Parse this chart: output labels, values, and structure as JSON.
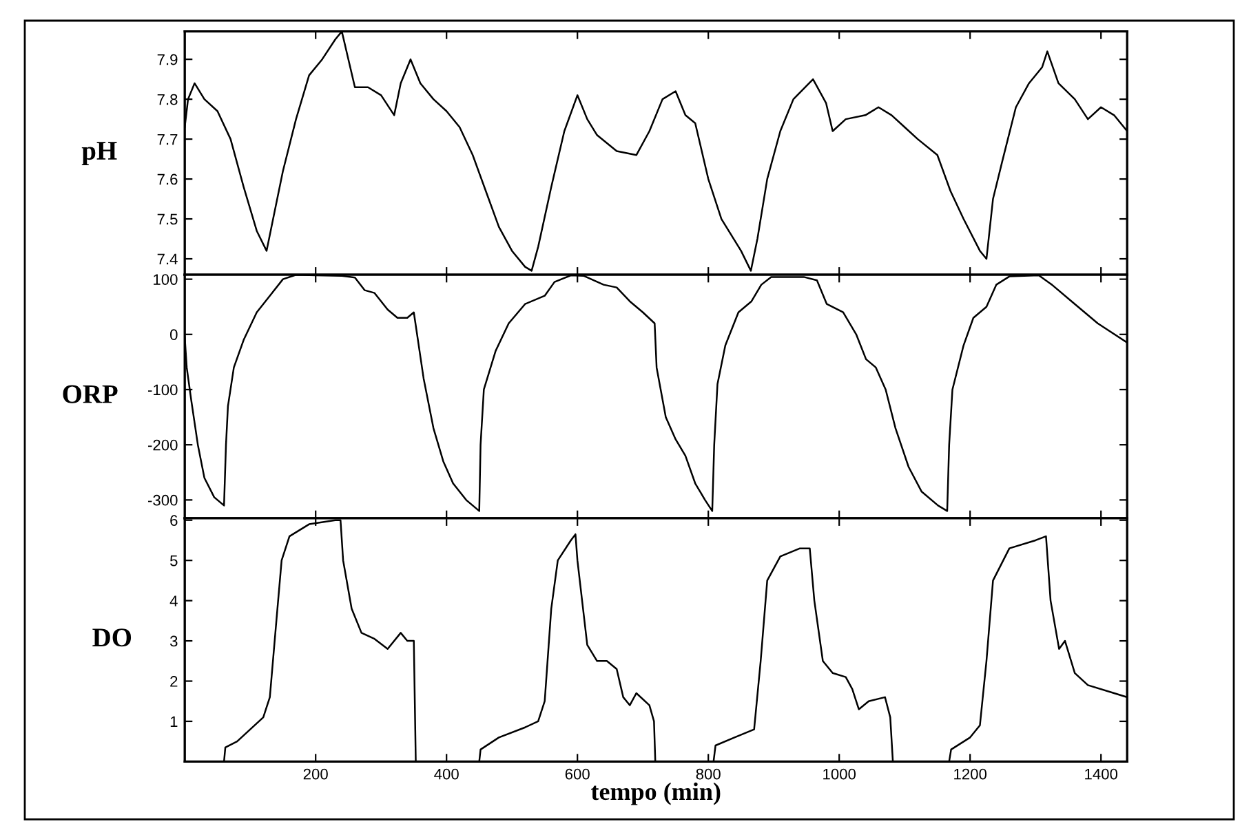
{
  "chart_data": [
    {
      "type": "line",
      "ylabel": "pH",
      "color": "#000000",
      "xlim": [
        0,
        1440
      ],
      "xticks": [
        200,
        400,
        600,
        800,
        1000,
        1200,
        1400
      ],
      "ylim": [
        7.36,
        7.97
      ],
      "yticks": [
        7.4,
        7.5,
        7.6,
        7.7,
        7.8,
        7.9
      ],
      "tick_labels": "y",
      "grid": false,
      "x": [
        0,
        5,
        15,
        30,
        50,
        70,
        90,
        110,
        125,
        135,
        150,
        170,
        190,
        210,
        230,
        240,
        250,
        260,
        280,
        300,
        320,
        330,
        345,
        360,
        380,
        400,
        420,
        440,
        460,
        480,
        500,
        520,
        530,
        540,
        560,
        580,
        600,
        615,
        630,
        660,
        690,
        710,
        730,
        750,
        765,
        780,
        800,
        820,
        850,
        865,
        875,
        890,
        910,
        930,
        960,
        980,
        990,
        1010,
        1040,
        1060,
        1080,
        1100,
        1120,
        1150,
        1170,
        1190,
        1215,
        1225,
        1235,
        1250,
        1270,
        1290,
        1310,
        1318,
        1335,
        1360,
        1380,
        1400,
        1420,
        1440
      ],
      "values": [
        7.73,
        7.8,
        7.84,
        7.8,
        7.77,
        7.7,
        7.58,
        7.47,
        7.42,
        7.5,
        7.62,
        7.75,
        7.86,
        7.9,
        7.95,
        7.97,
        7.9,
        7.83,
        7.83,
        7.81,
        7.76,
        7.84,
        7.9,
        7.84,
        7.8,
        7.77,
        7.73,
        7.66,
        7.57,
        7.48,
        7.42,
        7.38,
        7.37,
        7.43,
        7.58,
        7.72,
        7.81,
        7.75,
        7.71,
        7.67,
        7.66,
        7.72,
        7.8,
        7.82,
        7.76,
        7.74,
        7.6,
        7.5,
        7.42,
        7.37,
        7.45,
        7.6,
        7.72,
        7.8,
        7.85,
        7.79,
        7.72,
        7.75,
        7.76,
        7.78,
        7.76,
        7.73,
        7.7,
        7.66,
        7.57,
        7.5,
        7.42,
        7.4,
        7.55,
        7.65,
        7.78,
        7.84,
        7.88,
        7.92,
        7.84,
        7.8,
        7.75,
        7.78,
        7.76,
        7.72
      ]
    },
    {
      "type": "line",
      "ylabel": "ORP",
      "color": "#000000",
      "xlim": [
        0,
        1440
      ],
      "xticks": [
        200,
        400,
        600,
        800,
        1000,
        1200,
        1400
      ],
      "ylim": [
        -333,
        108
      ],
      "yticks": [
        -300,
        -200,
        -100,
        0,
        100
      ],
      "tick_labels": "y",
      "grid": false,
      "x": [
        0,
        3,
        10,
        20,
        30,
        45,
        60,
        63,
        66,
        75,
        90,
        110,
        130,
        150,
        170,
        200,
        240,
        260,
        275,
        290,
        310,
        325,
        340,
        350,
        355,
        365,
        380,
        395,
        410,
        430,
        445,
        450,
        452,
        457,
        475,
        495,
        520,
        550,
        565,
        590,
        610,
        640,
        660,
        680,
        700,
        718,
        721,
        735,
        750,
        765,
        780,
        795,
        806,
        809,
        814,
        826,
        846,
        866,
        881,
        896,
        946,
        966,
        981,
        1006,
        1026,
        1041,
        1056,
        1071,
        1086,
        1106,
        1126,
        1151,
        1165,
        1168,
        1173,
        1190,
        1205,
        1225,
        1240,
        1260,
        1305,
        1325,
        1355,
        1395,
        1440
      ],
      "values": [
        -5,
        -60,
        -120,
        -200,
        -260,
        -295,
        -310,
        -200,
        -130,
        -60,
        -10,
        40,
        70,
        100,
        108,
        107,
        106,
        103,
        80,
        75,
        45,
        30,
        30,
        40,
        0,
        -80,
        -170,
        -230,
        -270,
        -300,
        -315,
        -320,
        -200,
        -100,
        -30,
        20,
        55,
        70,
        95,
        107,
        106,
        90,
        85,
        60,
        40,
        20,
        -60,
        -150,
        -190,
        -220,
        -270,
        -300,
        -320,
        -200,
        -90,
        -20,
        40,
        60,
        90,
        104,
        104,
        98,
        55,
        40,
        0,
        -45,
        -60,
        -100,
        -170,
        -240,
        -285,
        -310,
        -320,
        -200,
        -100,
        -20,
        30,
        50,
        90,
        105,
        107,
        90,
        60,
        20,
        -15
      ]
    },
    {
      "type": "line",
      "ylabel": "DO",
      "xlabel": "tempo (min)",
      "color": "#000000",
      "xlim": [
        0,
        1440
      ],
      "xticks": [
        200,
        400,
        600,
        800,
        1000,
        1200,
        1400
      ],
      "ylim": [
        0,
        6.05
      ],
      "yticks": [
        1,
        2,
        3,
        4,
        5,
        6
      ],
      "grid": false,
      "x": [
        0,
        60,
        62,
        80,
        100,
        120,
        130,
        140,
        148,
        160,
        190,
        230,
        238,
        242,
        255,
        270,
        290,
        310,
        330,
        340,
        350,
        353,
        450,
        452,
        480,
        520,
        540,
        550,
        560,
        570,
        590,
        597,
        600,
        615,
        630,
        645,
        660,
        670,
        680,
        690,
        710,
        717,
        719,
        808,
        811,
        840,
        870,
        880,
        890,
        910,
        940,
        955,
        962,
        975,
        990,
        1010,
        1020,
        1030,
        1045,
        1070,
        1078,
        1082,
        1168,
        1171,
        1200,
        1215,
        1225,
        1235,
        1260,
        1300,
        1316,
        1323,
        1336,
        1345,
        1360,
        1380,
        1420,
        1440
      ],
      "values": [
        0,
        0,
        0.35,
        0.5,
        0.8,
        1.1,
        1.6,
        3.5,
        5.0,
        5.6,
        5.9,
        6.0,
        6.0,
        5.0,
        3.8,
        3.2,
        3.05,
        2.8,
        3.2,
        3.0,
        3.0,
        0,
        0,
        0.3,
        0.6,
        0.85,
        1.0,
        1.5,
        3.8,
        5.0,
        5.5,
        5.65,
        5.0,
        2.9,
        2.5,
        2.5,
        2.3,
        1.6,
        1.4,
        1.7,
        1.4,
        1.0,
        0,
        0,
        0.4,
        0.6,
        0.8,
        2.5,
        4.5,
        5.1,
        5.3,
        5.3,
        4.0,
        2.5,
        2.2,
        2.1,
        1.8,
        1.3,
        1.5,
        1.6,
        1.1,
        0,
        0,
        0.3,
        0.6,
        0.9,
        2.5,
        4.5,
        5.3,
        5.5,
        5.6,
        4.0,
        2.8,
        3.0,
        2.2,
        1.9,
        1.7,
        1.6
      ]
    }
  ]
}
